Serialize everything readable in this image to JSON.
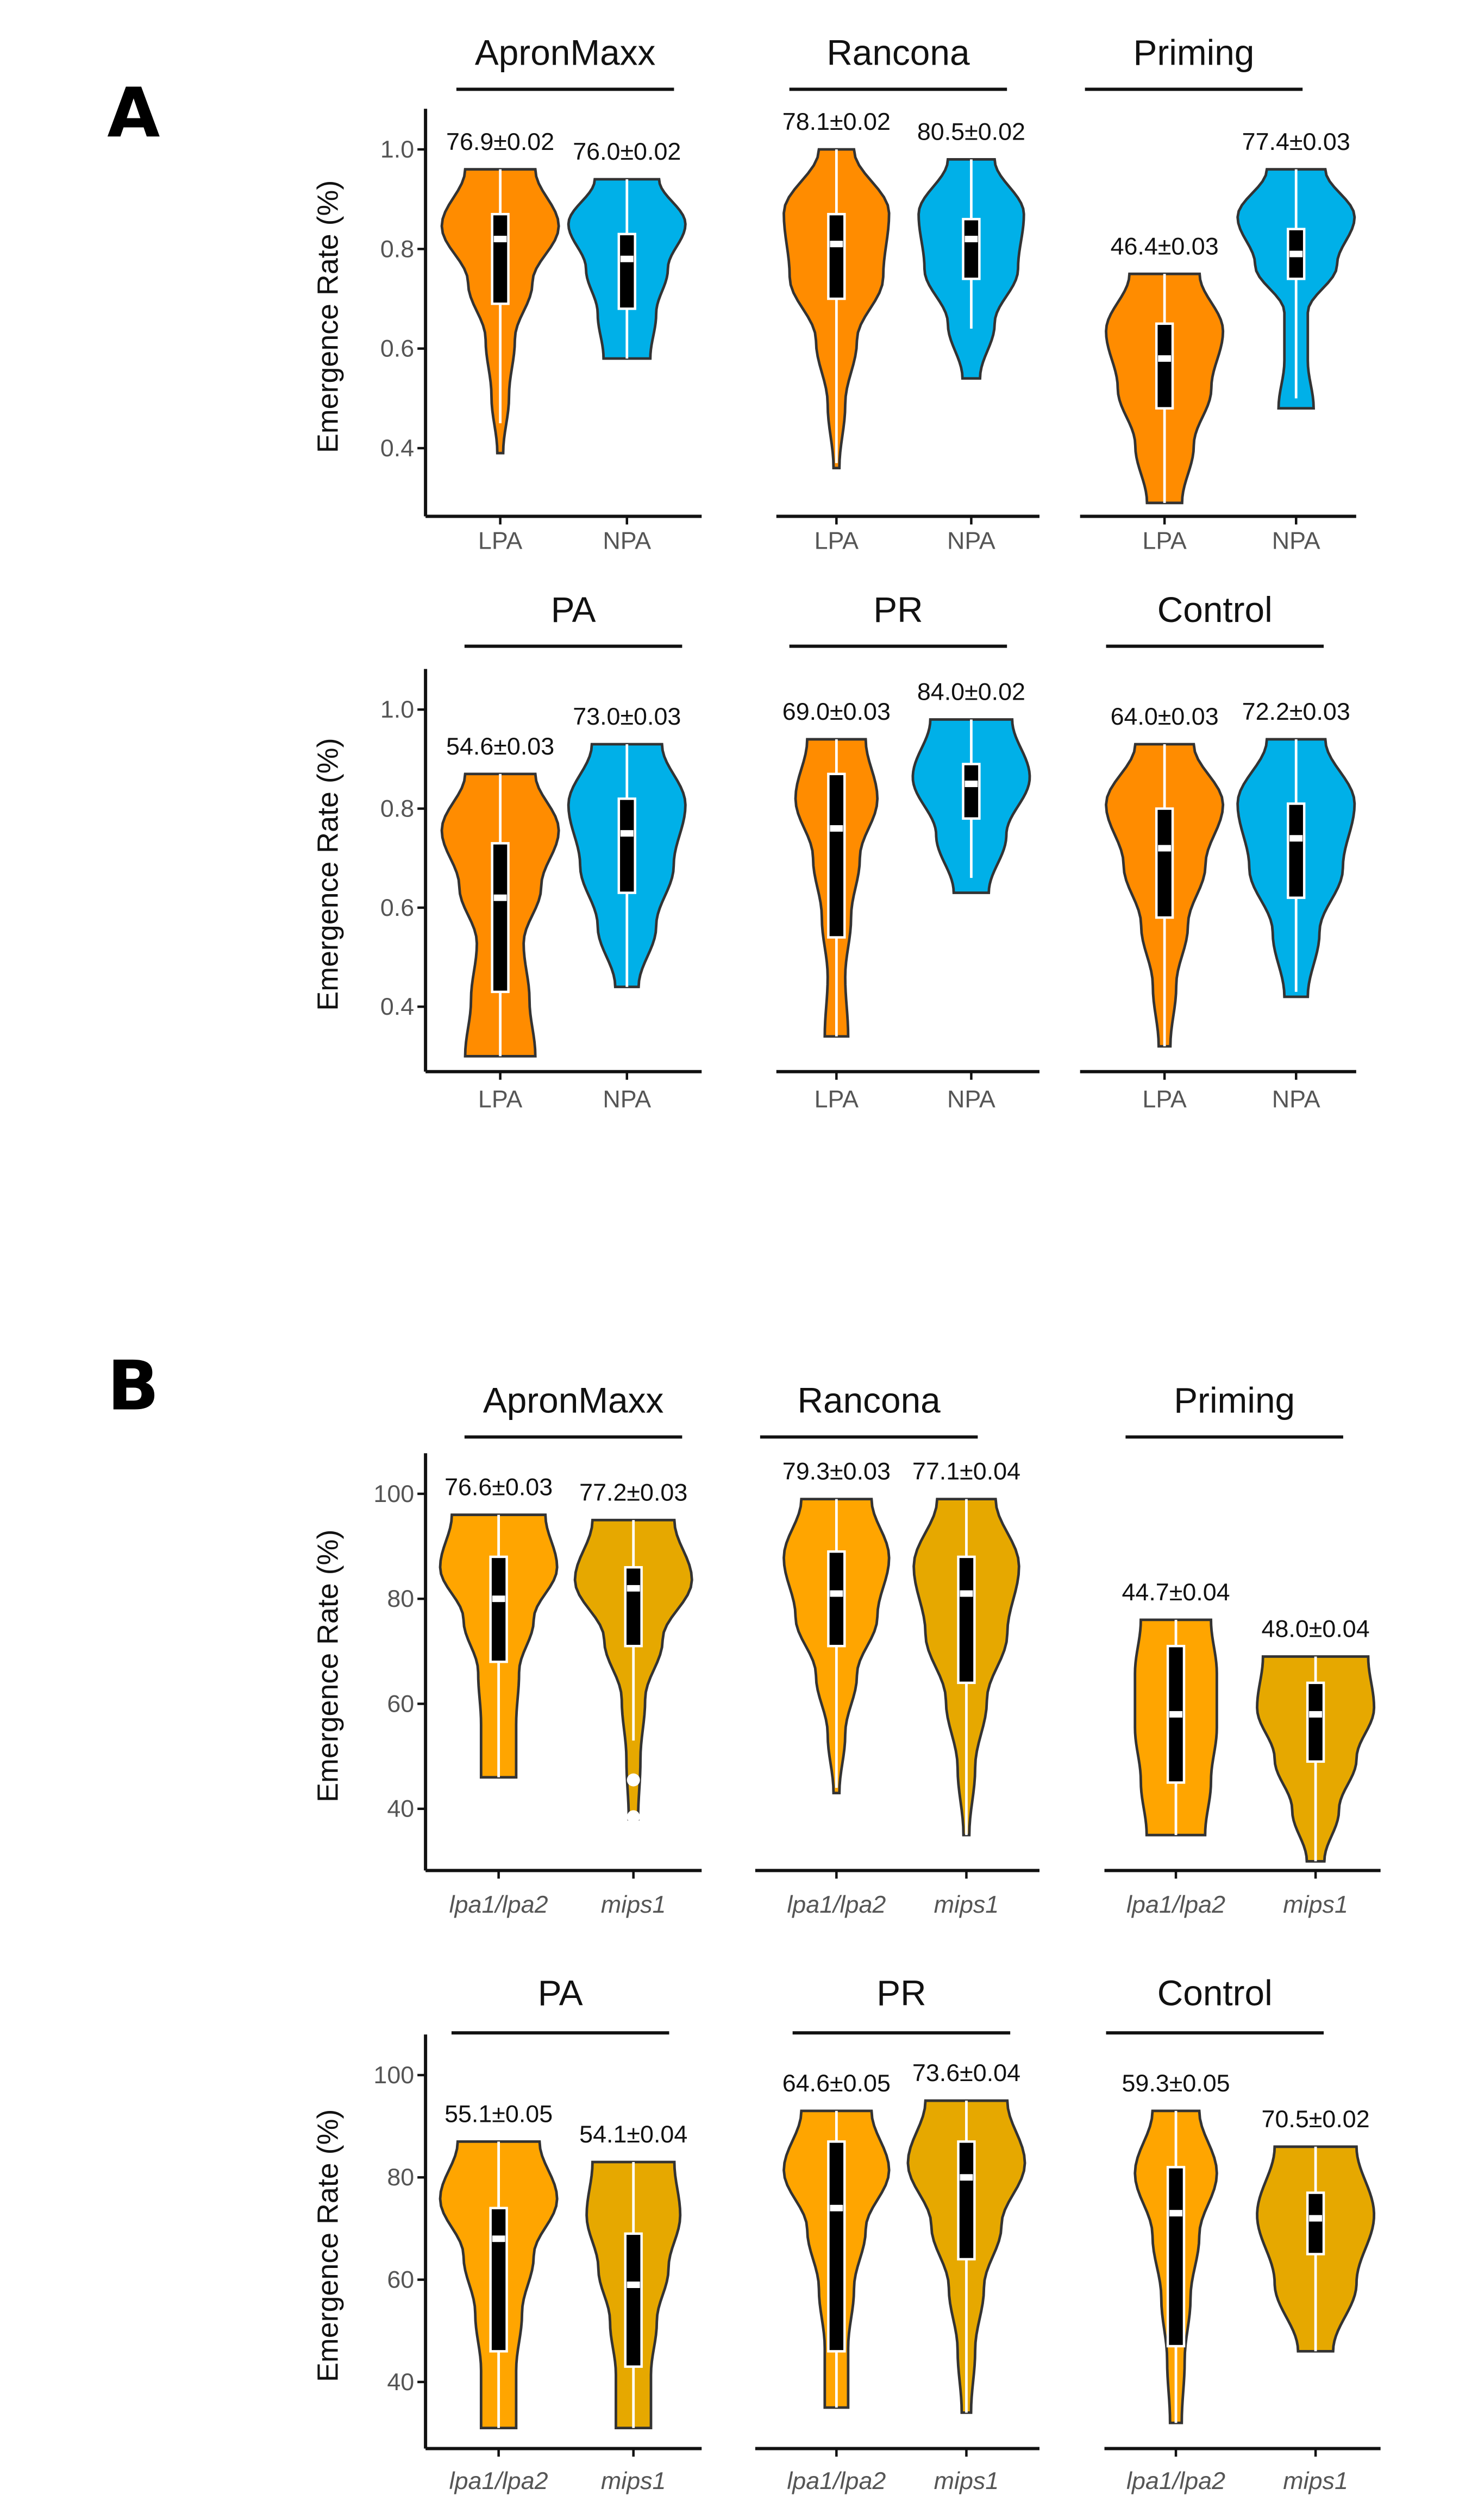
{
  "panel_letters": [
    "A",
    "B"
  ],
  "colors": {
    "LPA": "#FF8C00",
    "NPA": "#00B0E8",
    "lpa1/lpa2": "#FFA500",
    "mips1": "#E6A800"
  },
  "chart_data": [
    {
      "section": "A",
      "type": "violin",
      "title": "ApronMaxx",
      "ylabel": "Emergence Rate (%)",
      "yticks": [
        "1.0",
        "0.8",
        "0.6",
        "0.4"
      ],
      "ytick_values": [
        1.0,
        0.8,
        0.6,
        0.4
      ],
      "violins": [
        {
          "category": "LPA",
          "annotation": "76.9±0.02",
          "max": 0.96,
          "min": 0.39,
          "q1": 0.69,
          "median": 0.82,
          "q3": 0.87,
          "whisker_low": 0.45,
          "density": [
            0.6,
            1.0,
            0.55,
            0.25,
            0.15,
            0.05
          ]
        },
        {
          "category": "NPA",
          "annotation": "76.0±0.02",
          "max": 0.94,
          "min": 0.58,
          "q1": 0.68,
          "median": 0.78,
          "q3": 0.83,
          "whisker_low": 0.58,
          "density": [
            0.55,
            1.0,
            0.7,
            0.5,
            0.4
          ]
        }
      ]
    },
    {
      "section": "A",
      "type": "violin",
      "title": "Rancona",
      "ylabel": "",
      "yticks": [],
      "ytick_values": [],
      "violins": [
        {
          "category": "LPA",
          "annotation": "78.1±0.02",
          "max": 1.0,
          "min": 0.36,
          "q1": 0.7,
          "median": 0.81,
          "q3": 0.87,
          "whisker_low": 0.37,
          "density": [
            0.3,
            0.9,
            0.8,
            0.35,
            0.15,
            0.05
          ]
        },
        {
          "category": "NPA",
          "annotation": "80.5±0.02",
          "max": 0.98,
          "min": 0.54,
          "q1": 0.74,
          "median": 0.82,
          "q3": 0.86,
          "whisker_low": 0.64,
          "density": [
            0.4,
            0.9,
            0.8,
            0.4,
            0.15
          ]
        }
      ]
    },
    {
      "section": "A",
      "type": "violin",
      "title": "Priming",
      "ylabel": "",
      "yticks": [],
      "ytick_values": [],
      "violins": [
        {
          "category": "LPA",
          "annotation": "46.4±0.03",
          "max": 0.75,
          "min": 0.29,
          "q1": 0.48,
          "median": 0.58,
          "q3": 0.65,
          "whisker_low": 0.29,
          "density": [
            0.6,
            1.0,
            0.8,
            0.5,
            0.3
          ]
        },
        {
          "category": "NPA",
          "annotation": "77.4±0.03",
          "max": 0.96,
          "min": 0.48,
          "q1": 0.74,
          "median": 0.79,
          "q3": 0.84,
          "whisker_low": 0.5,
          "density": [
            0.5,
            1.0,
            0.7,
            0.2,
            0.2,
            0.3
          ]
        }
      ]
    },
    {
      "section": "A",
      "type": "violin",
      "title": "PA",
      "ylabel": "Emergence Rate (%)",
      "yticks": [
        "1.0",
        "0.8",
        "0.6",
        "0.4"
      ],
      "ytick_values": [
        1.0,
        0.8,
        0.6,
        0.4
      ],
      "violins": [
        {
          "category": "LPA",
          "annotation": "54.6±0.03",
          "max": 0.87,
          "min": 0.3,
          "q1": 0.43,
          "median": 0.62,
          "q3": 0.73,
          "whisker_low": 0.3,
          "density": [
            0.6,
            1.0,
            0.7,
            0.4,
            0.5,
            0.6
          ]
        },
        {
          "category": "NPA",
          "annotation": "73.0±0.03",
          "max": 0.93,
          "min": 0.44,
          "q1": 0.63,
          "median": 0.75,
          "q3": 0.82,
          "whisker_low": 0.44,
          "density": [
            0.6,
            1.0,
            0.8,
            0.5,
            0.2
          ]
        }
      ]
    },
    {
      "section": "A",
      "type": "violin",
      "title": "PR",
      "ylabel": "",
      "yticks": [],
      "ytick_values": [],
      "violins": [
        {
          "category": "LPA",
          "annotation": "69.0±0.03",
          "max": 0.94,
          "min": 0.34,
          "q1": 0.54,
          "median": 0.76,
          "q3": 0.87,
          "whisker_low": 0.34,
          "density": [
            0.5,
            0.7,
            0.4,
            0.25,
            0.15,
            0.2
          ]
        },
        {
          "category": "NPA",
          "annotation": "84.0±0.02",
          "max": 0.98,
          "min": 0.63,
          "q1": 0.78,
          "median": 0.85,
          "q3": 0.89,
          "whisker_low": 0.66,
          "density": [
            0.7,
            1.0,
            0.6,
            0.3
          ]
        }
      ]
    },
    {
      "section": "A",
      "type": "violin",
      "title": "Control",
      "ylabel": "",
      "yticks": [],
      "ytick_values": [],
      "violins": [
        {
          "category": "LPA",
          "annotation": "64.0±0.03",
          "max": 0.93,
          "min": 0.32,
          "q1": 0.58,
          "median": 0.72,
          "q3": 0.8,
          "whisker_low": 0.32,
          "density": [
            0.5,
            1.0,
            0.7,
            0.4,
            0.2,
            0.1
          ]
        },
        {
          "category": "NPA",
          "annotation": "72.2±0.03",
          "max": 0.94,
          "min": 0.42,
          "q1": 0.62,
          "median": 0.74,
          "q3": 0.81,
          "whisker_low": 0.43,
          "density": [
            0.5,
            1.0,
            0.8,
            0.4,
            0.2
          ]
        }
      ]
    },
    {
      "section": "B",
      "type": "violin",
      "title": "ApronMaxx",
      "ylabel": "Emergence Rate (%)",
      "yticks": [
        "100",
        "80",
        "60",
        "40"
      ],
      "ytick_values": [
        100,
        80,
        60,
        40
      ],
      "violins": [
        {
          "category": "lpa1/lpa2",
          "annotation": "76.6±0.03",
          "max": 96,
          "min": 46,
          "q1": 68,
          "median": 80,
          "q3": 88,
          "whisker_low": 46,
          "density": [
            0.8,
            1.0,
            0.6,
            0.35,
            0.3,
            0.3
          ]
        },
        {
          "category": "mips1",
          "annotation": "77.2±0.03",
          "max": 95,
          "min": 38,
          "q1": 71,
          "median": 82,
          "q3": 86,
          "whisker_low": 53,
          "outliers": [
            45.5,
            38.5
          ],
          "density": [
            0.7,
            1.0,
            0.5,
            0.2,
            0.12,
            0.08
          ]
        }
      ]
    },
    {
      "section": "B",
      "type": "violin",
      "title": "Rancona",
      "ylabel": "",
      "yticks": [],
      "ytick_values": [],
      "violins": [
        {
          "category": "lpa1/lpa2",
          "annotation": "79.3±0.03",
          "max": 99,
          "min": 43,
          "q1": 71,
          "median": 81,
          "q3": 89,
          "whisker_low": 44,
          "density": [
            0.6,
            0.9,
            0.7,
            0.35,
            0.15,
            0.05
          ]
        },
        {
          "category": "mips1",
          "annotation": "77.1±0.04",
          "max": 99,
          "min": 35,
          "q1": 64,
          "median": 81,
          "q3": 88,
          "whisker_low": 35,
          "density": [
            0.5,
            0.9,
            0.7,
            0.35,
            0.15,
            0.05
          ]
        }
      ]
    },
    {
      "section": "B",
      "type": "violin",
      "title": "Priming",
      "ylabel": "",
      "yticks": [],
      "ytick_values": [],
      "violins": [
        {
          "category": "lpa1/lpa2",
          "annotation": "44.7±0.04",
          "max": 76,
          "min": 35,
          "q1": 45,
          "median": 58,
          "q3": 71,
          "whisker_low": 35,
          "density": [
            0.6,
            0.7,
            0.7,
            0.6,
            0.5
          ]
        },
        {
          "category": "mips1",
          "annotation": "48.0±0.04",
          "max": 69,
          "min": 30,
          "q1": 49,
          "median": 58,
          "q3": 64,
          "whisker_low": 30,
          "density": [
            0.9,
            1.0,
            0.7,
            0.4,
            0.15
          ]
        }
      ]
    },
    {
      "section": "B",
      "type": "violin",
      "title": "PA",
      "ylabel": "Emergence Rate (%)",
      "yticks": [
        "100",
        "80",
        "60",
        "40"
      ],
      "ytick_values": [
        100,
        80,
        60,
        40
      ],
      "violins": [
        {
          "category": "lpa1/lpa2",
          "annotation": "55.1±0.05",
          "max": 87,
          "min": 31,
          "q1": 46,
          "median": 68,
          "q3": 74,
          "whisker_low": 31,
          "density": [
            0.7,
            1.0,
            0.6,
            0.4,
            0.3,
            0.3
          ]
        },
        {
          "category": "mips1",
          "annotation": "54.1±0.04",
          "max": 83,
          "min": 31,
          "q1": 43,
          "median": 59,
          "q3": 69,
          "whisker_low": 31,
          "density": [
            0.7,
            0.8,
            0.6,
            0.4,
            0.3,
            0.3
          ]
        }
      ]
    },
    {
      "section": "B",
      "type": "violin",
      "title": "PR",
      "ylabel": "",
      "yticks": [],
      "ytick_values": [],
      "violins": [
        {
          "category": "lpa1/lpa2",
          "annotation": "64.6±0.05",
          "max": 93,
          "min": 35,
          "q1": 46,
          "median": 74,
          "q3": 87,
          "whisker_low": 35,
          "density": [
            0.6,
            0.9,
            0.5,
            0.3,
            0.2,
            0.2
          ]
        },
        {
          "category": "mips1",
          "annotation": "73.6±0.04",
          "max": 95,
          "min": 34,
          "q1": 64,
          "median": 80,
          "q3": 87,
          "whisker_low": 34,
          "density": [
            0.7,
            1.0,
            0.6,
            0.3,
            0.15,
            0.08
          ]
        }
      ]
    },
    {
      "section": "B",
      "type": "violin",
      "title": "Control",
      "ylabel": "",
      "yticks": [],
      "ytick_values": [],
      "violins": [
        {
          "category": "lpa1/lpa2",
          "annotation": "59.3±0.05",
          "max": 93,
          "min": 32,
          "q1": 47,
          "median": 73,
          "q3": 82,
          "whisker_low": 32,
          "density": [
            0.4,
            0.7,
            0.4,
            0.25,
            0.15,
            0.1
          ]
        },
        {
          "category": "mips1",
          "annotation": "70.5±0.02",
          "max": 86,
          "min": 46,
          "q1": 65,
          "median": 72,
          "q3": 77,
          "whisker_low": 46,
          "density": [
            0.7,
            1.0,
            0.7,
            0.3
          ]
        }
      ]
    }
  ]
}
